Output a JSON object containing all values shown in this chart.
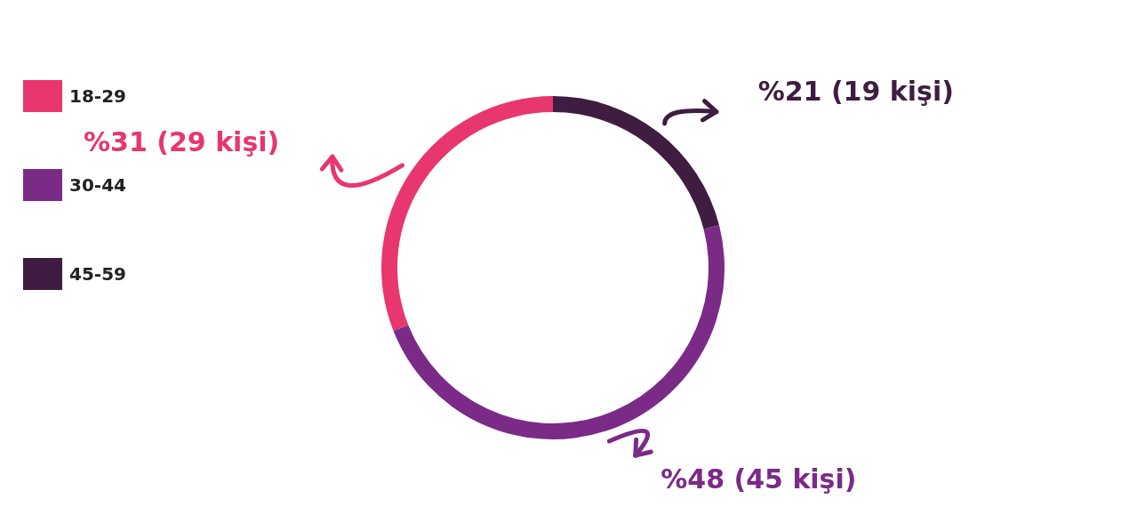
{
  "chart_data": {
    "type": "donut",
    "categories": [
      "18-29",
      "30-44",
      "45-59"
    ],
    "values": [
      31,
      48,
      21
    ],
    "colors": [
      "#e8366f",
      "#7b2a88",
      "#3f1d40"
    ],
    "value_labels": [
      "%31 (29 kişi)",
      "%48 (45 kişi)",
      "%21 (19 kişi)"
    ],
    "legend": "left"
  }
}
